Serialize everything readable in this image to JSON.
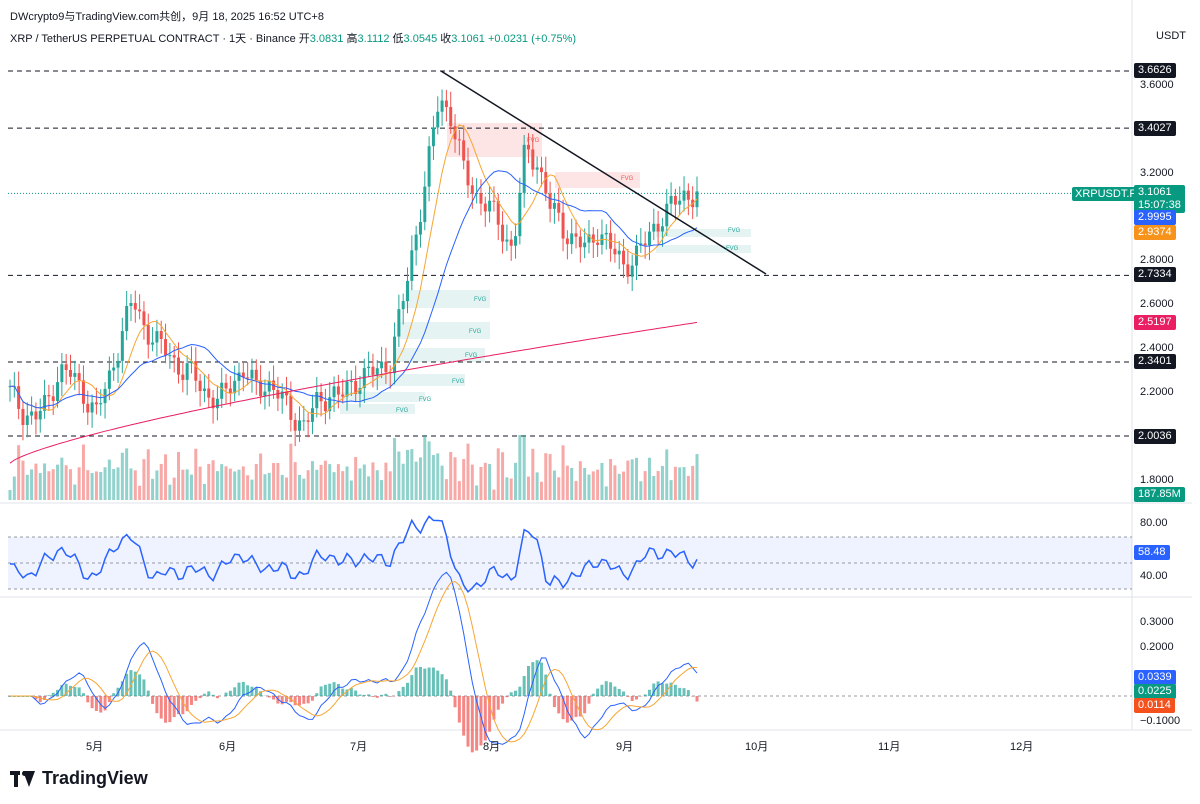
{
  "header": {
    "credit": "DWcrypto9与TradingView.com共创，9月 18, 2025 16:52 UTC+8",
    "symbol": "XRP / TetherUS PERPETUAL CONTRACT · 1天 · Binance",
    "open_label": "开",
    "open": "3.0831",
    "high_label": "高",
    "high": "3.1112",
    "low_label": "低",
    "low": "3.0545",
    "close_label": "收",
    "close": "3.1061",
    "change": "+0.0231 (+0.75%)",
    "unit": "USDT"
  },
  "price_axis": {
    "ticks": [
      "3.6000",
      "3.2000",
      "2.8000",
      "2.6000",
      "2.4000",
      "2.2000",
      "1.8000"
    ]
  },
  "tags": {
    "level_1": "3.6626",
    "level_2": "3.4027",
    "symbol_label": "XRPUSDT.P",
    "last_price": "3.1061",
    "countdown": "15:07:38",
    "ma_blue": "2.9995",
    "ma_orange": "2.9374",
    "level_3": "2.7334",
    "ma_red": "2.5197",
    "level_4": "2.3401",
    "level_5": "2.0036",
    "volume": "187.85M",
    "rsi": "58.48",
    "macd_1": "0.0339",
    "macd_2": "0.0225",
    "macd_hist": "0.0114"
  },
  "rsi_axis": {
    "ticks": [
      "80.00",
      "40.00"
    ]
  },
  "macd_axis": {
    "ticks": [
      "0.3000",
      "0.2000",
      "−0.1000"
    ]
  },
  "time_axis": {
    "ticks": [
      "5月",
      "6月",
      "7月",
      "8月",
      "9月",
      "10月",
      "11月",
      "12月"
    ]
  },
  "fvg_label": "FVG",
  "logo": {
    "name": "TradingView"
  },
  "colors": {
    "up": "#26a69a",
    "down": "#ef5350",
    "ma_blue": "#2962ff",
    "ma_orange": "#f7a531",
    "ma_red": "#e91e63",
    "rsi": "#2962ff",
    "tag_dark": "#131722",
    "tag_green": "#089981"
  },
  "chart_data": {
    "type": "candlestick",
    "timeframe": "1天",
    "price_range": [
      1.7,
      3.75
    ],
    "horizontal_levels": [
      3.6626,
      3.4027,
      2.7334,
      2.3401,
      2.0036
    ],
    "trendline": {
      "from_price": 3.66,
      "to_price": 2.73
    },
    "candles_close_path": [
      2.2,
      2.12,
      2.08,
      2.15,
      2.3,
      2.28,
      2.2,
      2.1,
      2.25,
      2.45,
      2.62,
      2.5,
      2.42,
      2.38,
      2.3,
      2.28,
      2.2,
      2.15,
      2.25,
      2.3,
      2.22,
      2.25,
      2.18,
      2.1,
      2.05,
      2.15,
      2.2,
      2.18,
      2.25,
      2.28,
      2.3,
      2.35,
      2.6,
      2.9,
      3.2,
      3.55,
      3.45,
      3.2,
      3.1,
      3.05,
      2.95,
      2.85,
      3.3,
      3.25,
      3.05,
      2.95,
      2.9,
      2.85,
      2.95,
      2.85,
      2.78,
      2.82,
      2.9,
      3.0,
      3.05,
      3.1,
      3.1061
    ],
    "rsi_last": 58.48,
    "rsi_levels": [
      70,
      30
    ],
    "macd_last": {
      "macd": 0.0339,
      "signal": 0.0225,
      "hist": 0.0114
    },
    "volume_last": "187.85M"
  }
}
